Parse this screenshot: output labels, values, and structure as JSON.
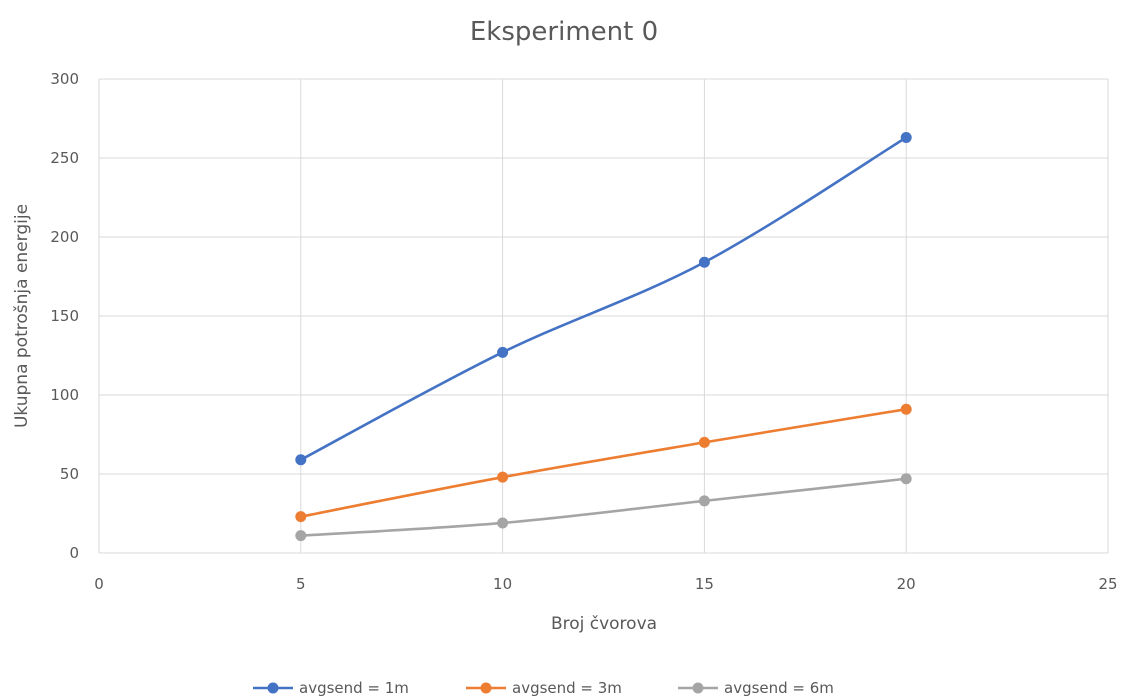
{
  "chart_data": {
    "type": "scatter",
    "title": "Eksperiment 0",
    "xlabel": "Broj čvorova",
    "ylabel": "Ukupna potrošnja energije",
    "xlim": [
      0,
      25
    ],
    "ylim": [
      0,
      300
    ],
    "x_ticks": [
      0,
      5,
      10,
      15,
      20,
      25
    ],
    "y_ticks": [
      0,
      50,
      100,
      150,
      200,
      250,
      300
    ],
    "grid": true,
    "smooth_lines": true,
    "markers": true,
    "legend_position": "bottom",
    "series": [
      {
        "name": "avgsend = 1m",
        "color": "#4472c4",
        "x": [
          5,
          10,
          15,
          20
        ],
        "y": [
          59,
          127,
          184,
          263
        ]
      },
      {
        "name": "avgsend = 3m",
        "color": "#ed7d31",
        "x": [
          5,
          10,
          15,
          20
        ],
        "y": [
          23,
          48,
          70,
          91
        ]
      },
      {
        "name": "avgsend = 6m",
        "color": "#a5a5a5",
        "x": [
          5,
          10,
          15,
          20
        ],
        "y": [
          11,
          19,
          33,
          47
        ]
      }
    ]
  }
}
